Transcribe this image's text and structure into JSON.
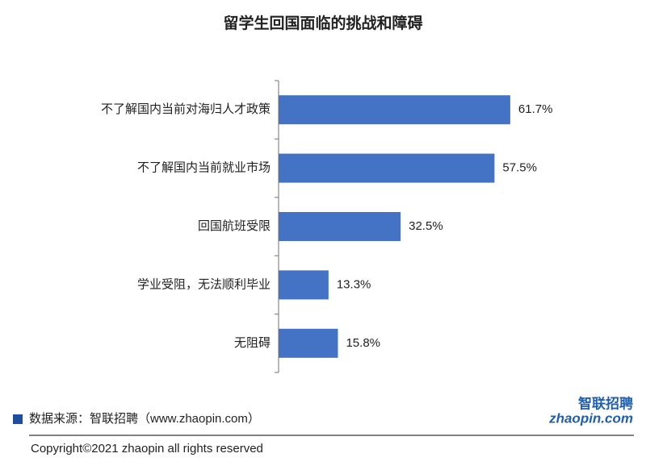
{
  "chart_data": {
    "type": "bar",
    "orientation": "horizontal",
    "title": "留学生回国面临的挑战和障碍",
    "categories": [
      "不了解国内当前对海归人才政策",
      "不了解国内当前就业市场",
      "回国航班受限",
      "学业受阻，无法顺利毕业",
      "无阻碍"
    ],
    "values": [
      61.7,
      57.5,
      32.5,
      13.3,
      15.8
    ],
    "value_labels": [
      "61.7%",
      "57.5%",
      "32.5%",
      "13.3%",
      "15.8%"
    ],
    "color": "#4472c4"
  },
  "footer": {
    "source": "数据来源：智联招聘（www.zhaopin.com）",
    "copyright": "Copyright©2021 zhaopin all rights reserved",
    "logo_top": "智联招聘",
    "logo_bottom": "zhaopin.com"
  }
}
